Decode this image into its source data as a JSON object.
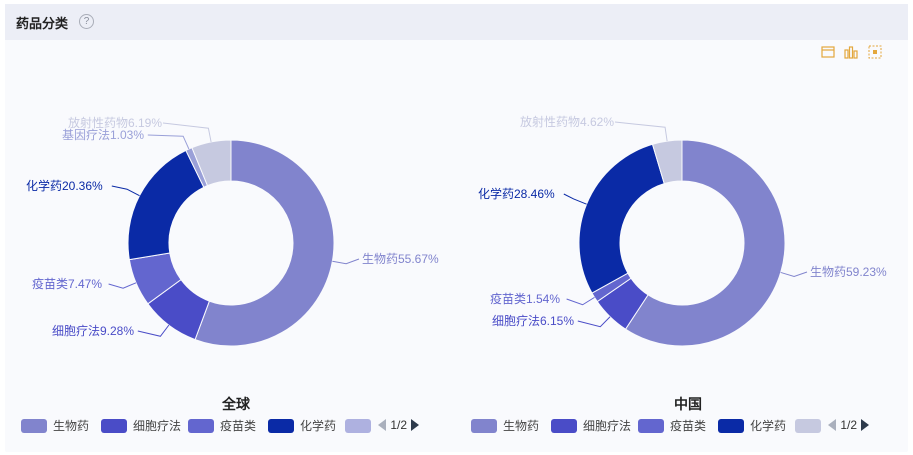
{
  "header": {
    "title": "药品分类",
    "help_icon": "?"
  },
  "toolbox": [
    "data-view-icon",
    "bar-chart-icon",
    "restore-icon"
  ],
  "colors": {
    "生物药": "#8184cd",
    "细胞疗法": "#4a4cc7",
    "疫苗类": "#6366cf",
    "化学药": "#0a2aa6",
    "基因疗法": "#9aa0d8",
    "放射性药物": "#c6c9e0"
  },
  "chart_data": [
    {
      "type": "pie",
      "title": "全球",
      "series": [
        {
          "name": "生物药",
          "value": 55.67,
          "label": "生物药55.67%"
        },
        {
          "name": "细胞疗法",
          "value": 9.28,
          "label": "细胞疗法9.28%"
        },
        {
          "name": "疫苗类",
          "value": 7.47,
          "label": "疫苗类7.47%"
        },
        {
          "name": "化学药",
          "value": 20.36,
          "label": "化学药20.36%"
        },
        {
          "name": "基因疗法",
          "value": 1.03,
          "label": "基因疗法1.03%"
        },
        {
          "name": "放射性药物",
          "value": 6.19,
          "label": "放射性药物6.19%"
        }
      ],
      "legend": {
        "items": [
          "生物药",
          "细胞疗法",
          "疫苗类",
          "化学药"
        ],
        "page": "1/2"
      }
    },
    {
      "type": "pie",
      "title": "中国",
      "series": [
        {
          "name": "生物药",
          "value": 59.23,
          "label": "生物药59.23%"
        },
        {
          "name": "细胞疗法",
          "value": 6.15,
          "label": "细胞疗法6.15%"
        },
        {
          "name": "疫苗类",
          "value": 1.54,
          "label": "疫苗类1.54%"
        },
        {
          "name": "化学药",
          "value": 28.46,
          "label": "化学药28.46%"
        },
        {
          "name": "放射性药物",
          "value": 4.62,
          "label": "放射性药物4.62%"
        }
      ],
      "legend": {
        "items": [
          "生物药",
          "细胞疗法",
          "疫苗类",
          "化学药"
        ],
        "page": "1/2"
      }
    }
  ]
}
